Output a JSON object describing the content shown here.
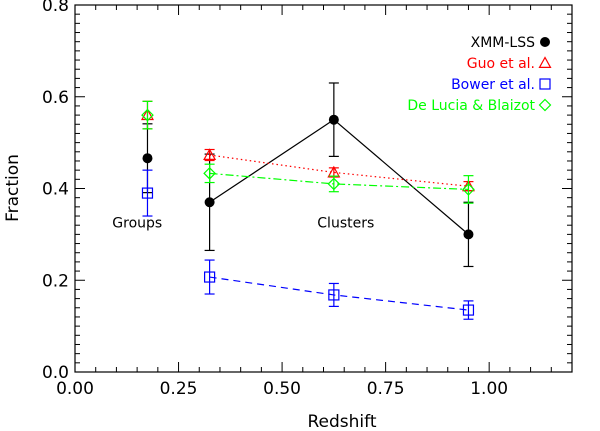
{
  "chart_data": {
    "type": "scatter",
    "title": "",
    "xlabel": "Redshift",
    "ylabel": "Fraction",
    "xlim": [
      0.0,
      1.2
    ],
    "ylim": [
      0.0,
      0.8
    ],
    "x_ticks": [
      "0.00",
      "0.25",
      "0.50",
      "0.75",
      "1.00"
    ],
    "y_ticks": [
      "0.0",
      "0.2",
      "0.4",
      "0.6",
      "0.8"
    ],
    "x_tick_values": [
      0.0,
      0.25,
      0.5,
      0.75,
      1.0
    ],
    "y_tick_values": [
      0.0,
      0.2,
      0.4,
      0.6,
      0.8
    ],
    "legend_position": "top-right",
    "grid": false,
    "series": [
      {
        "name": "XMM-LSS",
        "color": "#000000",
        "marker": "filled-circle",
        "line": "solid",
        "points": [
          {
            "x": 0.175,
            "y": 0.466,
            "err": 0.075
          },
          {
            "x": 0.325,
            "y": 0.37,
            "err": 0.105
          },
          {
            "x": 0.625,
            "y": 0.55,
            "err": 0.08
          },
          {
            "x": 0.95,
            "y": 0.3,
            "err": 0.07
          }
        ]
      },
      {
        "name": "Guo et al.",
        "color": "#ff0000",
        "marker": "open-triangle",
        "line": "dotted",
        "points": [
          {
            "x": 0.175,
            "y": 0.56,
            "err": 0.03
          },
          {
            "x": 0.325,
            "y": 0.473,
            "err": 0.012
          },
          {
            "x": 0.625,
            "y": 0.435,
            "err": 0.01
          },
          {
            "x": 0.95,
            "y": 0.405,
            "err": 0.01
          }
        ]
      },
      {
        "name": "Bower et al.",
        "color": "#0000ff",
        "marker": "open-square",
        "line": "dashed",
        "points": [
          {
            "x": 0.175,
            "y": 0.39,
            "err": 0.05
          },
          {
            "x": 0.325,
            "y": 0.207,
            "err": 0.037
          },
          {
            "x": 0.625,
            "y": 0.168,
            "err": 0.025
          },
          {
            "x": 0.95,
            "y": 0.135,
            "err": 0.02
          }
        ]
      },
      {
        "name": "De Lucia & Blaizot",
        "color": "#00ff00",
        "marker": "open-diamond",
        "line": "dashdot",
        "points": [
          {
            "x": 0.175,
            "y": 0.56,
            "err": 0.03
          },
          {
            "x": 0.325,
            "y": 0.433,
            "err": 0.02
          },
          {
            "x": 0.625,
            "y": 0.41,
            "err": 0.017
          },
          {
            "x": 0.95,
            "y": 0.398,
            "err": 0.03
          }
        ]
      }
    ],
    "annotations": [
      {
        "text": "Groups",
        "x": 0.09,
        "y": 0.315
      },
      {
        "text": "Clusters",
        "x": 0.585,
        "y": 0.315
      }
    ]
  }
}
